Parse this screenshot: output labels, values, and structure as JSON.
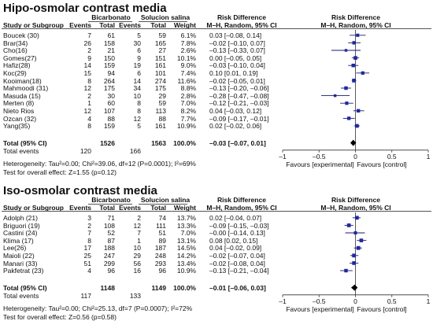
{
  "panels": [
    {
      "title": "Hipo-osmolar contrast media",
      "header": {
        "group1": "Bicarbonato",
        "group2": "Solucion salina",
        "rd_left": "Risk Difference",
        "rd_right": "Risk Difference",
        "study": "Study or Subgroup",
        "events1": "Events",
        "total1": "Total",
        "events2": "Events",
        "total2": "Total",
        "weight": "Weight",
        "method_left": "M–H, Random, 95% CI",
        "method_right": "M–H, Random, 95% CI"
      },
      "rows": [
        {
          "study": "Boucek (30)",
          "e1": "7",
          "t1": "61",
          "e2": "5",
          "t2": "59",
          "weight": "6.1%",
          "ci_text": "0.03 [–0.08, 0.14]"
        },
        {
          "study": "Brar(34)",
          "e1": "26",
          "t1": "158",
          "e2": "30",
          "t2": "165",
          "weight": "7.8%",
          "ci_text": "–0.02 [–0.10, 0.07]"
        },
        {
          "study": "Cho(16)",
          "e1": "2",
          "t1": "21",
          "e2": "6",
          "t2": "27",
          "weight": "2.6%",
          "ci_text": "–0.13 [–0.33, 0.07]"
        },
        {
          "study": "Gomes(27)",
          "e1": "9",
          "t1": "150",
          "e2": "9",
          "t2": "151",
          "weight": "10.1%",
          "ci_text": "0.00 [–0.05, 0.05]"
        },
        {
          "study": "Hafiz(28)",
          "e1": "14",
          "t1": "159",
          "e2": "19",
          "t2": "161",
          "weight": "9.0%",
          "ci_text": "–0.03 [–0.10, 0.04]"
        },
        {
          "study": "Koc(29)",
          "e1": "15",
          "t1": "94",
          "e2": "6",
          "t2": "101",
          "weight": "7.4%",
          "ci_text": "0.10 [0.01, 0.19]"
        },
        {
          "study": "Kooiman(18)",
          "e1": "8",
          "t1": "264",
          "e2": "14",
          "t2": "274",
          "weight": "11.6%",
          "ci_text": "–0.02 [–0.05, 0.01]"
        },
        {
          "study": "Mahmoodi (31)",
          "e1": "12",
          "t1": "175",
          "e2": "34",
          "t2": "175",
          "weight": "8.8%",
          "ci_text": "–0.13 [–0.20, –0.06]"
        },
        {
          "study": "Masuda (15)",
          "e1": "2",
          "t1": "30",
          "e2": "10",
          "t2": "29",
          "weight": "2.8%",
          "ci_text": "–0.28 [–0.47, –0.08]"
        },
        {
          "study": "Merten (8)",
          "e1": "1",
          "t1": "60",
          "e2": "8",
          "t2": "59",
          "weight": "7.0%",
          "ci_text": "–0.12 [–0.21, –0.03]"
        },
        {
          "study": "Nieto Rios",
          "e1": "12",
          "t1": "107",
          "e2": "8",
          "t2": "113",
          "weight": "8.2%",
          "ci_text": "0.04 [–0.03, 0.12]"
        },
        {
          "study": "Ozcan (32)",
          "e1": "4",
          "t1": "88",
          "e2": "12",
          "t2": "88",
          "weight": "7.7%",
          "ci_text": "–0.09 [–0.17, –0.01]"
        },
        {
          "study": "Yang(35)",
          "e1": "8",
          "t1": "159",
          "e2": "5",
          "t2": "161",
          "weight": "10.9%",
          "ci_text": "0.02 [–0.02, 0.06]"
        }
      ],
      "total_label": "Total (95% CI)",
      "total_t1": "1526",
      "total_t2": "1563",
      "total_weight": "100.0%",
      "total_ci_text": "–0.03 [–0.07, 0.01]",
      "events_label": "Total events",
      "events_e1": "120",
      "events_e2": "166",
      "heterogeneity": "Heterogeneity: Tau²=0.00; Chi²=39.06, df=12 (P=0.0001); I²=69%",
      "overall": "Test for overall effect: Z=1.55 (p=0.12)",
      "axis_ticks": [
        "–1",
        "–0.5",
        "0",
        "0.5",
        "1"
      ],
      "favours_left": "Favours [experimental]",
      "favours_right": "Favours [control]"
    },
    {
      "title": "Iso-osmolar contrast media",
      "header": {
        "group1": "Bicarbonato",
        "group2": "Solucion salina",
        "rd_left": "Risk Difference",
        "rd_right": "Risk Difference",
        "study": "Study or Subgroup",
        "events1": "Events",
        "total1": "Total",
        "events2": "Events",
        "total2": "Total",
        "weight": "Weight",
        "method_left": "M–H, Random, 95% CI",
        "method_right": "M–H, Random, 95% CI"
      },
      "rows": [
        {
          "study": "Adolph (21)",
          "e1": "3",
          "t1": "71",
          "e2": "2",
          "t2": "74",
          "weight": "13.7%",
          "ci_text": "0.02 [–0.04, 0.07]"
        },
        {
          "study": "Briguori (19)",
          "e1": "2",
          "t1": "108",
          "e2": "12",
          "t2": "111",
          "weight": "13.3%",
          "ci_text": "–0.09 [–0.15, –0.03]"
        },
        {
          "study": "Castini (24)",
          "e1": "7",
          "t1": "52",
          "e2": "7",
          "t2": "51",
          "weight": "7.0%",
          "ci_text": "–0.00 [–0.14, 0.13]"
        },
        {
          "study": "Klima (17)",
          "e1": "8",
          "t1": "87",
          "e2": "1",
          "t2": "89",
          "weight": "13.1%",
          "ci_text": "0.08 [0.02, 0.15]"
        },
        {
          "study": "Lee(26)",
          "e1": "17",
          "t1": "188",
          "e2": "10",
          "t2": "187",
          "weight": "14.5%",
          "ci_text": "0.04 [–0.02, 0.09]"
        },
        {
          "study": "Maioli (22)",
          "e1": "25",
          "t1": "247",
          "e2": "29",
          "t2": "248",
          "weight": "14.2%",
          "ci_text": "–0.02 [–0.07, 0.04]"
        },
        {
          "study": "Manari (33)",
          "e1": "51",
          "t1": "299",
          "e2": "56",
          "t2": "293",
          "weight": "13.4%",
          "ci_text": "–0.02 [–0.08, 0.04]"
        },
        {
          "study": "Pakfetrat (23)",
          "e1": "4",
          "t1": "96",
          "e2": "16",
          "t2": "96",
          "weight": "10.9%",
          "ci_text": "–0.13 [–0.21, –0.04]"
        }
      ],
      "total_label": "Total (95% CI)",
      "total_t1": "1148",
      "total_t2": "1149",
      "total_weight": "100.0%",
      "total_ci_text": "–0.01 [–0.06, 0.03]",
      "events_label": "Total events",
      "events_e1": "117",
      "events_e2": "133",
      "heterogeneity": "Heterogeneity: Tau²=0.00; Chi²=25.13, df=7 (P=0.0007); I²=72%",
      "overall": "Test for overall effect: Z=0.56 (p=0.58)",
      "axis_ticks": [
        "–1",
        "–0.5",
        "0",
        "0.5",
        "1"
      ],
      "favours_left": "Favours [experimental]",
      "favours_right": "Favours [control]"
    }
  ],
  "chart_data": [
    {
      "type": "forest",
      "title": "Hipo-osmolar contrast media",
      "xlim": [
        -1,
        1
      ],
      "xticks": [
        -1,
        -0.5,
        0,
        0.5,
        1
      ],
      "studies": [
        {
          "name": "Boucek (30)",
          "rd": 0.03,
          "lo": -0.08,
          "hi": 0.14,
          "weight": 6.1
        },
        {
          "name": "Brar(34)",
          "rd": -0.02,
          "lo": -0.1,
          "hi": 0.07,
          "weight": 7.8
        },
        {
          "name": "Cho(16)",
          "rd": -0.13,
          "lo": -0.33,
          "hi": 0.07,
          "weight": 2.6
        },
        {
          "name": "Gomes(27)",
          "rd": 0.0,
          "lo": -0.05,
          "hi": 0.05,
          "weight": 10.1
        },
        {
          "name": "Hafiz(28)",
          "rd": -0.03,
          "lo": -0.1,
          "hi": 0.04,
          "weight": 9.0
        },
        {
          "name": "Koc(29)",
          "rd": 0.1,
          "lo": 0.01,
          "hi": 0.19,
          "weight": 7.4
        },
        {
          "name": "Kooiman(18)",
          "rd": -0.02,
          "lo": -0.05,
          "hi": 0.01,
          "weight": 11.6
        },
        {
          "name": "Mahmoodi (31)",
          "rd": -0.13,
          "lo": -0.2,
          "hi": -0.06,
          "weight": 8.8
        },
        {
          "name": "Masuda (15)",
          "rd": -0.28,
          "lo": -0.47,
          "hi": -0.08,
          "weight": 2.8
        },
        {
          "name": "Merten (8)",
          "rd": -0.12,
          "lo": -0.21,
          "hi": -0.03,
          "weight": 7.0
        },
        {
          "name": "Nieto Rios",
          "rd": 0.04,
          "lo": -0.03,
          "hi": 0.12,
          "weight": 8.2
        },
        {
          "name": "Ozcan (32)",
          "rd": -0.09,
          "lo": -0.17,
          "hi": -0.01,
          "weight": 7.7
        },
        {
          "name": "Yang(35)",
          "rd": 0.02,
          "lo": -0.02,
          "hi": 0.06,
          "weight": 10.9
        }
      ],
      "pooled": {
        "rd": -0.03,
        "lo": -0.07,
        "hi": 0.01
      }
    },
    {
      "type": "forest",
      "title": "Iso-osmolar contrast media",
      "xlim": [
        -1,
        1
      ],
      "xticks": [
        -1,
        -0.5,
        0,
        0.5,
        1
      ],
      "studies": [
        {
          "name": "Adolph (21)",
          "rd": 0.02,
          "lo": -0.04,
          "hi": 0.07,
          "weight": 13.7
        },
        {
          "name": "Briguori (19)",
          "rd": -0.09,
          "lo": -0.15,
          "hi": -0.03,
          "weight": 13.3
        },
        {
          "name": "Castini (24)",
          "rd": -0.0,
          "lo": -0.14,
          "hi": 0.13,
          "weight": 7.0
        },
        {
          "name": "Klima (17)",
          "rd": 0.08,
          "lo": 0.02,
          "hi": 0.15,
          "weight": 13.1
        },
        {
          "name": "Lee(26)",
          "rd": 0.04,
          "lo": -0.02,
          "hi": 0.09,
          "weight": 14.5
        },
        {
          "name": "Maioli (22)",
          "rd": -0.02,
          "lo": -0.07,
          "hi": 0.04,
          "weight": 14.2
        },
        {
          "name": "Manari (33)",
          "rd": -0.02,
          "lo": -0.08,
          "hi": 0.04,
          "weight": 13.4
        },
        {
          "name": "Pakfetrat (23)",
          "rd": -0.13,
          "lo": -0.21,
          "hi": -0.04,
          "weight": 10.9
        }
      ],
      "pooled": {
        "rd": -0.01,
        "lo": -0.06,
        "hi": 0.03
      }
    }
  ]
}
